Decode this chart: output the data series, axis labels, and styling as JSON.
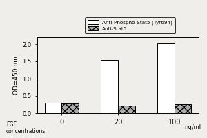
{
  "categories": [
    "0",
    "20",
    "100"
  ],
  "anti_phospho_values": [
    0.3,
    1.55,
    2.02
  ],
  "anti_stat5_values": [
    0.28,
    0.22,
    0.27
  ],
  "bar_width": 0.3,
  "ylim": [
    0.0,
    2.2
  ],
  "yticks": [
    0.0,
    0.5,
    1.0,
    1.5,
    2.0
  ],
  "ylabel": "OD=450 nm",
  "xlabel_line1": "EGF",
  "xlabel_line2": "concentrations",
  "xlabel_unit": "ng/ml",
  "legend_label_1": "Anti-Phospho-Stat5 (Tyr694)",
  "legend_label_2": "Anti-Stat5",
  "bar_color_1": "white",
  "bar_color_2": "#aaaaaa",
  "bar_edgecolor": "black",
  "background_color": "#f0eeea",
  "hatch_pattern": "xxx"
}
